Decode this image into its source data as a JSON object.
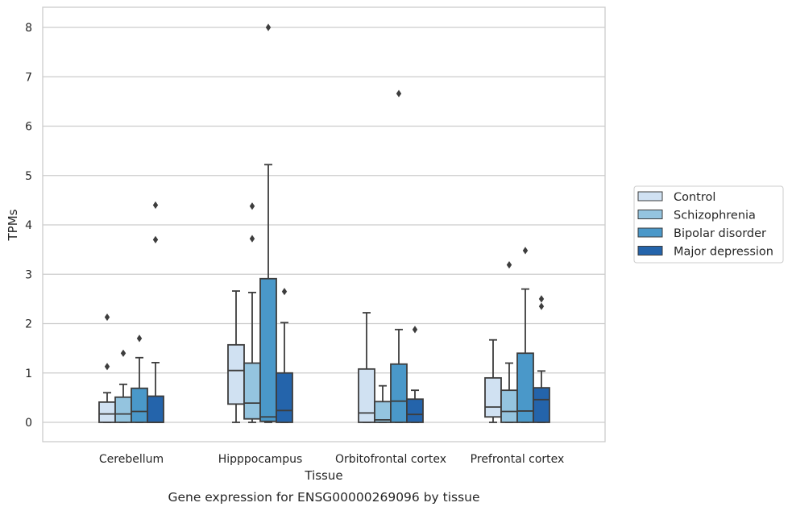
{
  "chart_data": {
    "type": "box",
    "title": "",
    "caption": "Gene expression for ENSG00000269096 by tissue",
    "xlabel": "Tissue",
    "ylabel": "TPMs",
    "ylim": [
      -0.4,
      8.4
    ],
    "yticks": [
      0,
      1,
      2,
      3,
      4,
      5,
      6,
      7,
      8
    ],
    "grid": true,
    "legend_position": "right",
    "categories": [
      "Cerebellum",
      "Hipppocampus",
      "Orbitofrontal cortex",
      "Prefrontal cortex"
    ],
    "series": [
      {
        "name": "Control",
        "color": "#d0e1f2",
        "boxes": [
          {
            "whislo": 0.0,
            "q1": 0.0,
            "med": 0.17,
            "q3": 0.41,
            "whishi": 0.6,
            "fliers": [
              1.13,
              2.13
            ]
          },
          {
            "whislo": 0.0,
            "q1": 0.37,
            "med": 1.05,
            "q3": 1.57,
            "whishi": 2.66,
            "fliers": []
          },
          {
            "whislo": 0.0,
            "q1": 0.0,
            "med": 0.19,
            "q3": 1.08,
            "whishi": 2.22,
            "fliers": []
          },
          {
            "whislo": 0.0,
            "q1": 0.11,
            "med": 0.31,
            "q3": 0.9,
            "whishi": 1.67,
            "fliers": []
          }
        ]
      },
      {
        "name": "Schizophrenia",
        "color": "#94c4df",
        "boxes": [
          {
            "whislo": 0.0,
            "q1": 0.0,
            "med": 0.17,
            "q3": 0.51,
            "whishi": 0.77,
            "fliers": [
              1.4
            ]
          },
          {
            "whislo": 0.0,
            "q1": 0.07,
            "med": 0.39,
            "q3": 1.2,
            "whishi": 2.63,
            "fliers": [
              3.72,
              4.38
            ]
          },
          {
            "whislo": 0.0,
            "q1": 0.0,
            "med": 0.05,
            "q3": 0.42,
            "whishi": 0.74,
            "fliers": []
          },
          {
            "whislo": 0.0,
            "q1": 0.0,
            "med": 0.22,
            "q3": 0.65,
            "whishi": 1.2,
            "fliers": [
              3.19
            ]
          }
        ]
      },
      {
        "name": "Bipolar disorder",
        "color": "#4a98c9",
        "boxes": [
          {
            "whislo": 0.0,
            "q1": 0.0,
            "med": 0.22,
            "q3": 0.69,
            "whishi": 1.31,
            "fliers": [
              1.7
            ]
          },
          {
            "whislo": 0.0,
            "q1": 0.02,
            "med": 0.11,
            "q3": 2.91,
            "whishi": 5.22,
            "fliers": [
              8.0
            ]
          },
          {
            "whislo": 0.0,
            "q1": 0.0,
            "med": 0.43,
            "q3": 1.18,
            "whishi": 1.88,
            "fliers": [
              6.66
            ]
          },
          {
            "whislo": 0.0,
            "q1": 0.0,
            "med": 0.23,
            "q3": 1.4,
            "whishi": 2.7,
            "fliers": [
              3.48
            ]
          }
        ]
      },
      {
        "name": "Major depression",
        "color": "#2464ab",
        "boxes": [
          {
            "whislo": 0.0,
            "q1": 0.0,
            "med": 0.0,
            "q3": 0.53,
            "whishi": 1.21,
            "fliers": [
              3.7,
              4.4
            ]
          },
          {
            "whislo": 0.0,
            "q1": 0.0,
            "med": 0.24,
            "q3": 1.0,
            "whishi": 2.02,
            "fliers": [
              2.65
            ]
          },
          {
            "whislo": 0.0,
            "q1": 0.0,
            "med": 0.16,
            "q3": 0.47,
            "whishi": 0.65,
            "fliers": [
              1.88
            ]
          },
          {
            "whislo": 0.0,
            "q1": 0.0,
            "med": 0.46,
            "q3": 0.7,
            "whishi": 1.04,
            "fliers": [
              2.35,
              2.5
            ]
          }
        ]
      }
    ]
  }
}
